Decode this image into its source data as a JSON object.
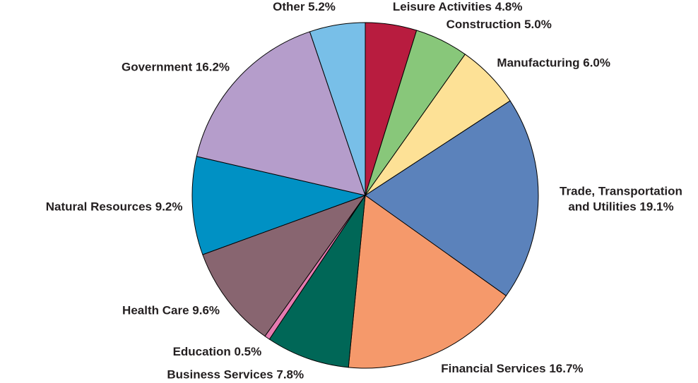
{
  "chart_data": {
    "type": "pie",
    "categories": [
      "Leisure Activities",
      "Construction",
      "Manufacturing",
      "Trade, Transportation and Utilities",
      "Financial Services",
      "Business Services",
      "Education",
      "Health Care",
      "Natural Resources",
      "Government",
      "Other"
    ],
    "values": [
      4.8,
      5.0,
      6.0,
      19.1,
      16.7,
      7.8,
      0.5,
      9.6,
      9.2,
      16.2,
      5.2
    ],
    "value_labels": [
      "4.8%",
      "5.0%",
      "6.0%",
      "19.1%",
      "16.7%",
      "7.8%",
      "0.5%",
      "9.6%",
      "9.2%",
      "16.2%",
      "5.2%"
    ],
    "colors": [
      "#b81c3f",
      "#88c77a",
      "#fde196",
      "#5b82bb",
      "#f5996b",
      "#006757",
      "#e57bb0",
      "#886570",
      "#0091c4",
      "#b59dcb",
      "#78bfe8"
    ]
  }
}
